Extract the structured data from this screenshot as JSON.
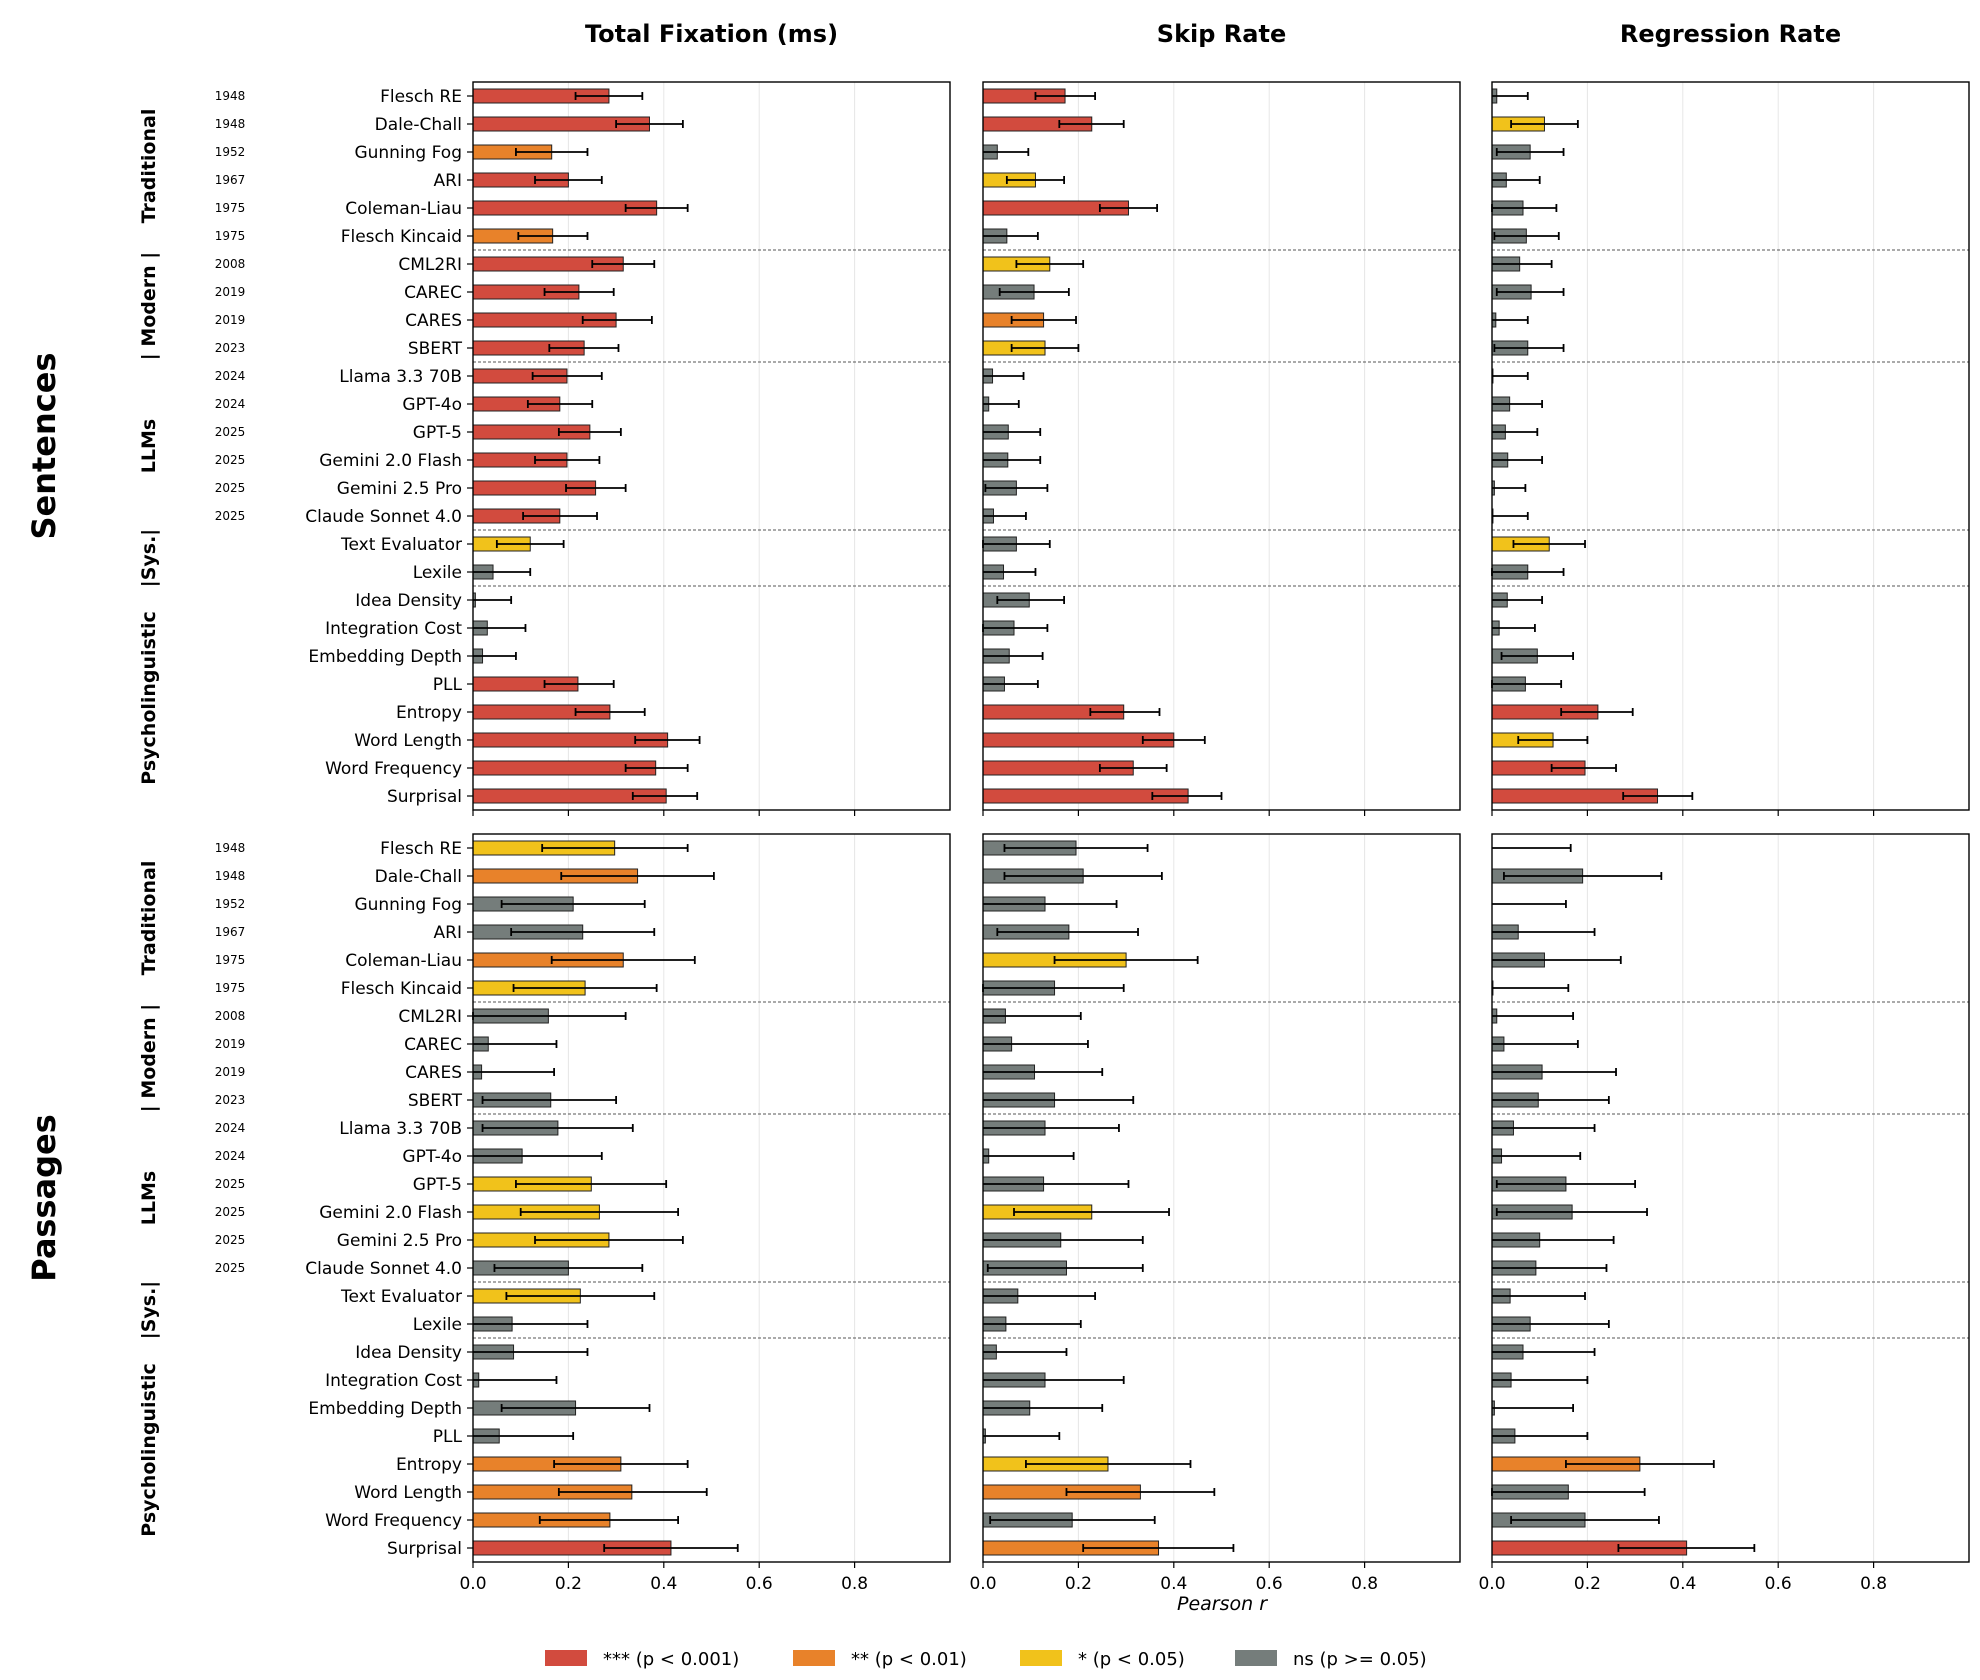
{
  "chart_data": {
    "type": "bar",
    "orientation": "horizontal",
    "columns": [
      "Total Fixation (ms)",
      "Skip Rate",
      "Regression Rate"
    ],
    "rows": [
      "Sentences",
      "Passages"
    ],
    "xlabel": "Pearson r",
    "xlim": [
      0.0,
      1.0
    ],
    "xticks": [
      "0.0",
      "0.2",
      "0.4",
      "0.6",
      "0.8"
    ],
    "grid": true,
    "features": [
      "Flesch RE",
      "Dale-Chall",
      "Gunning Fog",
      "ARI",
      "Coleman-Liau",
      "Flesch Kincaid",
      "CML2RI",
      "CAREC",
      "CARES",
      "SBERT",
      "Llama 3.3 70B",
      "GPT-4o",
      "GPT-5",
      "Gemini 2.0 Flash",
      "Gemini 2.5 Pro",
      "Claude Sonnet 4.0",
      "Text Evaluator",
      "Lexile",
      "Idea Density",
      "Integration Cost",
      "Embedding Depth",
      "PLL",
      "Entropy",
      "Word Length",
      "Word Frequency",
      "Surprisal"
    ],
    "years": [
      "1948",
      "1948",
      "1952",
      "1967",
      "1975",
      "1975",
      "2008",
      "2019",
      "2019",
      "2023",
      "2024",
      "2024",
      "2025",
      "2025",
      "2025",
      "2025",
      "",
      "",
      "",
      "",
      "",
      "",
      "",
      "",
      "",
      ""
    ],
    "groups": [
      {
        "label": "Traditional",
        "count": 6
      },
      {
        "label": "| Modern |",
        "count": 4
      },
      {
        "label": "LLMs",
        "count": 6
      },
      {
        "label": "|Sys.|",
        "count": 2
      },
      {
        "label": "Psycholinguistic",
        "count": 8
      }
    ],
    "significance_colors": {
      "***": "#d24b3e",
      "**": "#e8822a",
      "*": "#f1c21b",
      "ns": "#757d7b"
    },
    "legend": [
      {
        "key": "***",
        "label": "*** (p < 0.001)"
      },
      {
        "key": "**",
        "label": "** (p < 0.01)"
      },
      {
        "key": "*",
        "label": "* (p < 0.05)"
      },
      {
        "key": "ns",
        "label": "ns (p >= 0.05)"
      }
    ],
    "legend_position": "bottom-center",
    "panels": {
      "Sentences": {
        "Total Fixation (ms)": [
          [
            0.285,
            0.215,
            0.355,
            "***"
          ],
          [
            0.37,
            0.3,
            0.44,
            "***"
          ],
          [
            0.165,
            0.09,
            0.24,
            "**"
          ],
          [
            0.2,
            0.13,
            0.27,
            "***"
          ],
          [
            0.385,
            0.32,
            0.45,
            "***"
          ],
          [
            0.167,
            0.095,
            0.24,
            "**"
          ],
          [
            0.315,
            0.25,
            0.38,
            "***"
          ],
          [
            0.222,
            0.15,
            0.295,
            "***"
          ],
          [
            0.3,
            0.23,
            0.375,
            "***"
          ],
          [
            0.233,
            0.16,
            0.305,
            "***"
          ],
          [
            0.197,
            0.125,
            0.27,
            "***"
          ],
          [
            0.182,
            0.115,
            0.25,
            "***"
          ],
          [
            0.245,
            0.18,
            0.31,
            "***"
          ],
          [
            0.197,
            0.13,
            0.265,
            "***"
          ],
          [
            0.257,
            0.195,
            0.32,
            "***"
          ],
          [
            0.182,
            0.105,
            0.26,
            "***"
          ],
          [
            0.12,
            0.05,
            0.19,
            "*"
          ],
          [
            0.042,
            -0.03,
            0.12,
            "ns"
          ],
          [
            0.005,
            -0.07,
            0.08,
            "ns"
          ],
          [
            0.03,
            -0.05,
            0.11,
            "ns"
          ],
          [
            0.02,
            -0.05,
            0.09,
            "ns"
          ],
          [
            0.22,
            0.15,
            0.295,
            "***"
          ],
          [
            0.287,
            0.215,
            0.36,
            "***"
          ],
          [
            0.408,
            0.34,
            0.475,
            "***"
          ],
          [
            0.383,
            0.32,
            0.45,
            "***"
          ],
          [
            0.405,
            0.335,
            0.47,
            "***"
          ]
        ],
        "Skip Rate": [
          [
            0.172,
            0.11,
            0.235,
            "***"
          ],
          [
            0.228,
            0.16,
            0.295,
            "***"
          ],
          [
            0.03,
            -0.035,
            0.095,
            "ns"
          ],
          [
            0.11,
            0.05,
            0.17,
            "*"
          ],
          [
            0.305,
            0.245,
            0.365,
            "***"
          ],
          [
            0.05,
            -0.015,
            0.115,
            "ns"
          ],
          [
            0.14,
            0.07,
            0.21,
            "*"
          ],
          [
            0.107,
            0.035,
            0.18,
            "ns"
          ],
          [
            0.127,
            0.06,
            0.195,
            "**"
          ],
          [
            0.13,
            0.06,
            0.2,
            "*"
          ],
          [
            0.02,
            -0.045,
            0.085,
            "ns"
          ],
          [
            0.012,
            -0.05,
            0.075,
            "ns"
          ],
          [
            0.053,
            -0.015,
            0.12,
            "ns"
          ],
          [
            0.052,
            -0.015,
            0.12,
            "ns"
          ],
          [
            0.07,
            0.005,
            0.135,
            "ns"
          ],
          [
            0.022,
            -0.045,
            0.09,
            "ns"
          ],
          [
            0.07,
            0.0,
            0.14,
            "ns"
          ],
          [
            0.043,
            -0.025,
            0.11,
            "ns"
          ],
          [
            0.097,
            0.03,
            0.17,
            "ns"
          ],
          [
            0.065,
            0.0,
            0.135,
            "ns"
          ],
          [
            0.055,
            -0.015,
            0.125,
            "ns"
          ],
          [
            0.045,
            -0.02,
            0.115,
            "ns"
          ],
          [
            0.295,
            0.225,
            0.37,
            "***"
          ],
          [
            0.4,
            0.335,
            0.465,
            "***"
          ],
          [
            0.315,
            0.245,
            0.385,
            "***"
          ],
          [
            0.43,
            0.355,
            0.5,
            "***"
          ]
        ],
        "Regression Rate": [
          [
            0.01,
            -0.055,
            0.075,
            "ns"
          ],
          [
            0.11,
            0.04,
            0.18,
            "*"
          ],
          [
            0.08,
            0.01,
            0.15,
            "ns"
          ],
          [
            0.03,
            -0.035,
            0.1,
            "ns"
          ],
          [
            0.065,
            0.0,
            0.135,
            "ns"
          ],
          [
            0.072,
            0.005,
            0.14,
            "ns"
          ],
          [
            0.058,
            -0.01,
            0.125,
            "ns"
          ],
          [
            0.082,
            0.01,
            0.15,
            "ns"
          ],
          [
            0.008,
            -0.055,
            0.075,
            "ns"
          ],
          [
            0.075,
            0.005,
            0.15,
            "ns"
          ],
          [
            0.002,
            -0.07,
            0.075,
            "ns"
          ],
          [
            0.037,
            -0.03,
            0.105,
            "ns"
          ],
          [
            0.028,
            -0.04,
            0.095,
            "ns"
          ],
          [
            0.033,
            -0.035,
            0.105,
            "ns"
          ],
          [
            0.005,
            -0.06,
            0.07,
            "ns"
          ],
          [
            0.002,
            -0.07,
            0.075,
            "ns"
          ],
          [
            0.12,
            0.045,
            0.195,
            "*"
          ],
          [
            0.075,
            0.0,
            0.15,
            "ns"
          ],
          [
            0.032,
            -0.04,
            0.105,
            "ns"
          ],
          [
            0.015,
            -0.055,
            0.09,
            "ns"
          ],
          [
            0.095,
            0.02,
            0.17,
            "ns"
          ],
          [
            0.07,
            0.0,
            0.145,
            "ns"
          ],
          [
            0.222,
            0.145,
            0.295,
            "***"
          ],
          [
            0.128,
            0.055,
            0.2,
            "*"
          ],
          [
            0.195,
            0.125,
            0.26,
            "***"
          ],
          [
            0.347,
            0.275,
            0.42,
            "***"
          ]
        ]
      },
      "Passages": {
        "Total Fixation (ms)": [
          [
            0.297,
            0.145,
            0.45,
            "*"
          ],
          [
            0.345,
            0.185,
            0.505,
            "**"
          ],
          [
            0.21,
            0.06,
            0.36,
            "ns"
          ],
          [
            0.23,
            0.08,
            0.38,
            "ns"
          ],
          [
            0.315,
            0.165,
            0.465,
            "**"
          ],
          [
            0.235,
            0.085,
            0.385,
            "*"
          ],
          [
            0.158,
            0.0,
            0.32,
            "ns"
          ],
          [
            0.032,
            -0.11,
            0.175,
            "ns"
          ],
          [
            0.018,
            -0.12,
            0.17,
            "ns"
          ],
          [
            0.163,
            0.02,
            0.3,
            "ns"
          ],
          [
            0.178,
            0.02,
            0.335,
            "ns"
          ],
          [
            0.103,
            -0.06,
            0.27,
            "ns"
          ],
          [
            0.248,
            0.09,
            0.405,
            "*"
          ],
          [
            0.265,
            0.1,
            0.43,
            "*"
          ],
          [
            0.285,
            0.13,
            0.44,
            "*"
          ],
          [
            0.2,
            0.045,
            0.355,
            "ns"
          ],
          [
            0.225,
            0.07,
            0.38,
            "*"
          ],
          [
            0.082,
            -0.07,
            0.24,
            "ns"
          ],
          [
            0.085,
            -0.07,
            0.24,
            "ns"
          ],
          [
            0.012,
            -0.15,
            0.175,
            "ns"
          ],
          [
            0.215,
            0.06,
            0.37,
            "ns"
          ],
          [
            0.055,
            -0.1,
            0.21,
            "ns"
          ],
          [
            0.31,
            0.17,
            0.45,
            "**"
          ],
          [
            0.333,
            0.18,
            0.49,
            "**"
          ],
          [
            0.287,
            0.14,
            0.43,
            "**"
          ],
          [
            0.415,
            0.275,
            0.555,
            "***"
          ]
        ],
        "Skip Rate": [
          [
            0.195,
            0.045,
            0.345,
            "ns"
          ],
          [
            0.21,
            0.045,
            0.375,
            "ns"
          ],
          [
            0.13,
            -0.015,
            0.28,
            "ns"
          ],
          [
            0.18,
            0.03,
            0.325,
            "ns"
          ],
          [
            0.3,
            0.15,
            0.45,
            "*"
          ],
          [
            0.15,
            0.0,
            0.295,
            "ns"
          ],
          [
            0.047,
            -0.11,
            0.205,
            "ns"
          ],
          [
            0.06,
            -0.1,
            0.22,
            "ns"
          ],
          [
            0.108,
            -0.035,
            0.25,
            "ns"
          ],
          [
            0.15,
            -0.015,
            0.315,
            "ns"
          ],
          [
            0.13,
            -0.02,
            0.285,
            "ns"
          ],
          [
            0.012,
            -0.165,
            0.19,
            "ns"
          ],
          [
            0.127,
            -0.05,
            0.305,
            "ns"
          ],
          [
            0.228,
            0.065,
            0.39,
            "*"
          ],
          [
            0.163,
            -0.01,
            0.335,
            "ns"
          ],
          [
            0.175,
            0.01,
            0.335,
            "ns"
          ],
          [
            0.073,
            -0.085,
            0.235,
            "ns"
          ],
          [
            0.048,
            -0.11,
            0.205,
            "ns"
          ],
          [
            0.028,
            -0.12,
            0.175,
            "ns"
          ],
          [
            0.13,
            -0.035,
            0.295,
            "ns"
          ],
          [
            0.098,
            -0.055,
            0.25,
            "ns"
          ],
          [
            0.005,
            -0.15,
            0.16,
            "ns"
          ],
          [
            0.262,
            0.09,
            0.435,
            "*"
          ],
          [
            0.33,
            0.175,
            0.485,
            "**"
          ],
          [
            0.187,
            0.015,
            0.36,
            "ns"
          ],
          [
            0.368,
            0.21,
            0.525,
            "**"
          ]
        ],
        "Regression Rate": [
          [
            0.0,
            -0.165,
            0.165,
            "ns"
          ],
          [
            0.19,
            0.025,
            0.355,
            "ns"
          ],
          [
            0.0,
            -0.155,
            0.155,
            "ns"
          ],
          [
            0.055,
            -0.105,
            0.215,
            "ns"
          ],
          [
            0.11,
            -0.05,
            0.27,
            "ns"
          ],
          [
            0.002,
            -0.155,
            0.16,
            "ns"
          ],
          [
            0.01,
            -0.15,
            0.17,
            "ns"
          ],
          [
            0.025,
            -0.13,
            0.18,
            "ns"
          ],
          [
            0.105,
            -0.05,
            0.26,
            "ns"
          ],
          [
            0.097,
            -0.05,
            0.245,
            "ns"
          ],
          [
            0.045,
            -0.125,
            0.215,
            "ns"
          ],
          [
            0.02,
            -0.145,
            0.185,
            "ns"
          ],
          [
            0.155,
            0.01,
            0.3,
            "ns"
          ],
          [
            0.168,
            0.01,
            0.325,
            "ns"
          ],
          [
            0.1,
            -0.055,
            0.255,
            "ns"
          ],
          [
            0.092,
            -0.055,
            0.24,
            "ns"
          ],
          [
            0.038,
            -0.12,
            0.195,
            "ns"
          ],
          [
            0.08,
            -0.085,
            0.245,
            "ns"
          ],
          [
            0.065,
            -0.085,
            0.215,
            "ns"
          ],
          [
            0.04,
            -0.12,
            0.2,
            "ns"
          ],
          [
            0.005,
            -0.16,
            0.17,
            "ns"
          ],
          [
            0.048,
            -0.105,
            0.2,
            "ns"
          ],
          [
            0.31,
            0.155,
            0.465,
            "**"
          ],
          [
            0.16,
            0.0,
            0.32,
            "ns"
          ],
          [
            0.195,
            0.04,
            0.35,
            "ns"
          ],
          [
            0.408,
            0.265,
            0.55,
            "***"
          ]
        ]
      }
    }
  }
}
